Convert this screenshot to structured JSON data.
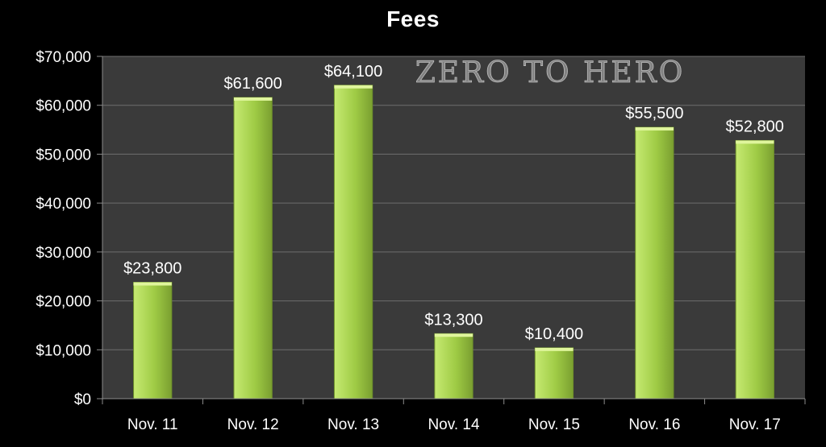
{
  "chart_data": {
    "type": "bar",
    "title": "Fees",
    "categories": [
      "Nov. 11",
      "Nov. 12",
      "Nov. 13",
      "Nov. 14",
      "Nov. 15",
      "Nov. 16",
      "Nov. 17"
    ],
    "values": [
      23800,
      61600,
      64100,
      13300,
      10400,
      55500,
      52800
    ],
    "data_labels": [
      "$23,800",
      "$61,600",
      "$64,100",
      "$13,300",
      "$10,400",
      "$55,500",
      "$52,800"
    ],
    "y_tick_labels": [
      "$0",
      "$10,000",
      "$20,000",
      "$30,000",
      "$40,000",
      "$50,000",
      "$60,000",
      "$70,000"
    ],
    "y_ticks": [
      0,
      10000,
      20000,
      30000,
      40000,
      50000,
      60000,
      70000
    ],
    "ylim": [
      0,
      70000
    ],
    "xlabel": "",
    "ylabel": "",
    "grid": true,
    "legend": "none"
  },
  "watermark": "ZERO TO HERO",
  "colors": {
    "background": "#000000",
    "plot_area": "#3a3a3a",
    "gridline": "#6e6e6e",
    "bar_light": "#b4dc5e",
    "bar_dark": "#7fa832",
    "text": "#ffffff"
  }
}
